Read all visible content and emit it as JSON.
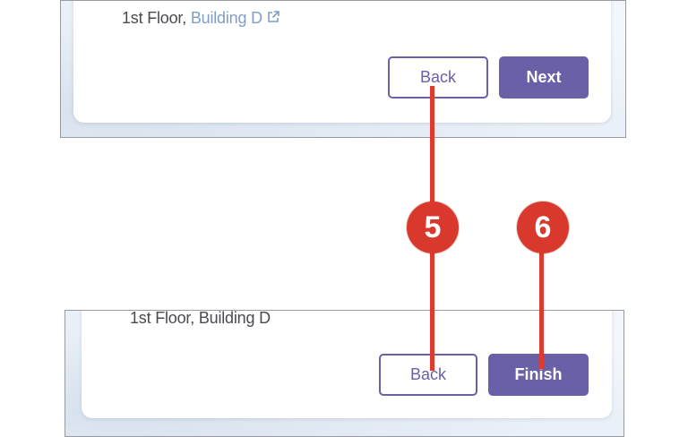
{
  "top_panel": {
    "address_prefix": "1st Floor, ",
    "address_link": "Building D",
    "link_icon": "external-link-icon",
    "back_label": "Back",
    "next_label": "Next"
  },
  "bottom_panel": {
    "address": "1st Floor, Building D",
    "back_label": "Back",
    "finish_label": "Finish"
  },
  "callouts": [
    {
      "label": "5"
    },
    {
      "label": "6"
    }
  ],
  "colors": {
    "accent": "#6a60a8",
    "link": "#7e9ec8",
    "callout": "#d8392c"
  }
}
